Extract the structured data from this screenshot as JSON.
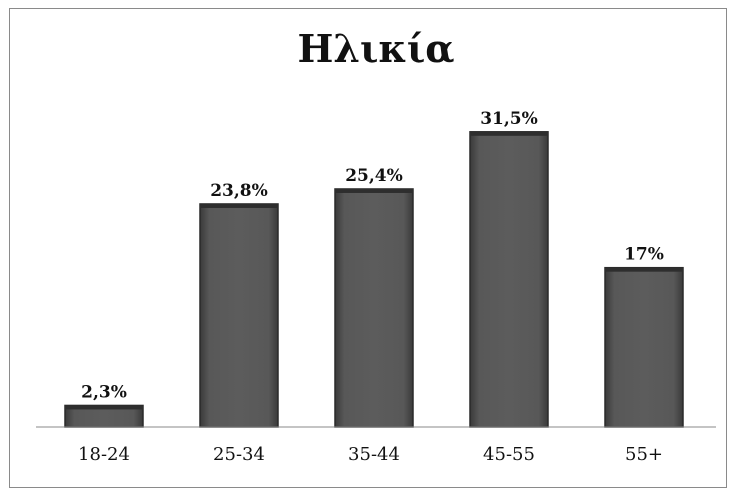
{
  "chart_data": {
    "type": "bar",
    "title": "Ηλικία",
    "categories": [
      "18-24",
      "25-34",
      "35-44",
      "45-55",
      "55+"
    ],
    "values": [
      2.3,
      23.8,
      25.4,
      31.5,
      17
    ],
    "value_labels": [
      "2,3%",
      "23,8%",
      "25,4%",
      "31,5%",
      "17%"
    ],
    "xlabel": "",
    "ylabel": "",
    "ylim": [
      0,
      35
    ],
    "grid": false,
    "legend": "none",
    "bar_color": "#505050",
    "bar_edge_color": "#2a2a2a"
  }
}
